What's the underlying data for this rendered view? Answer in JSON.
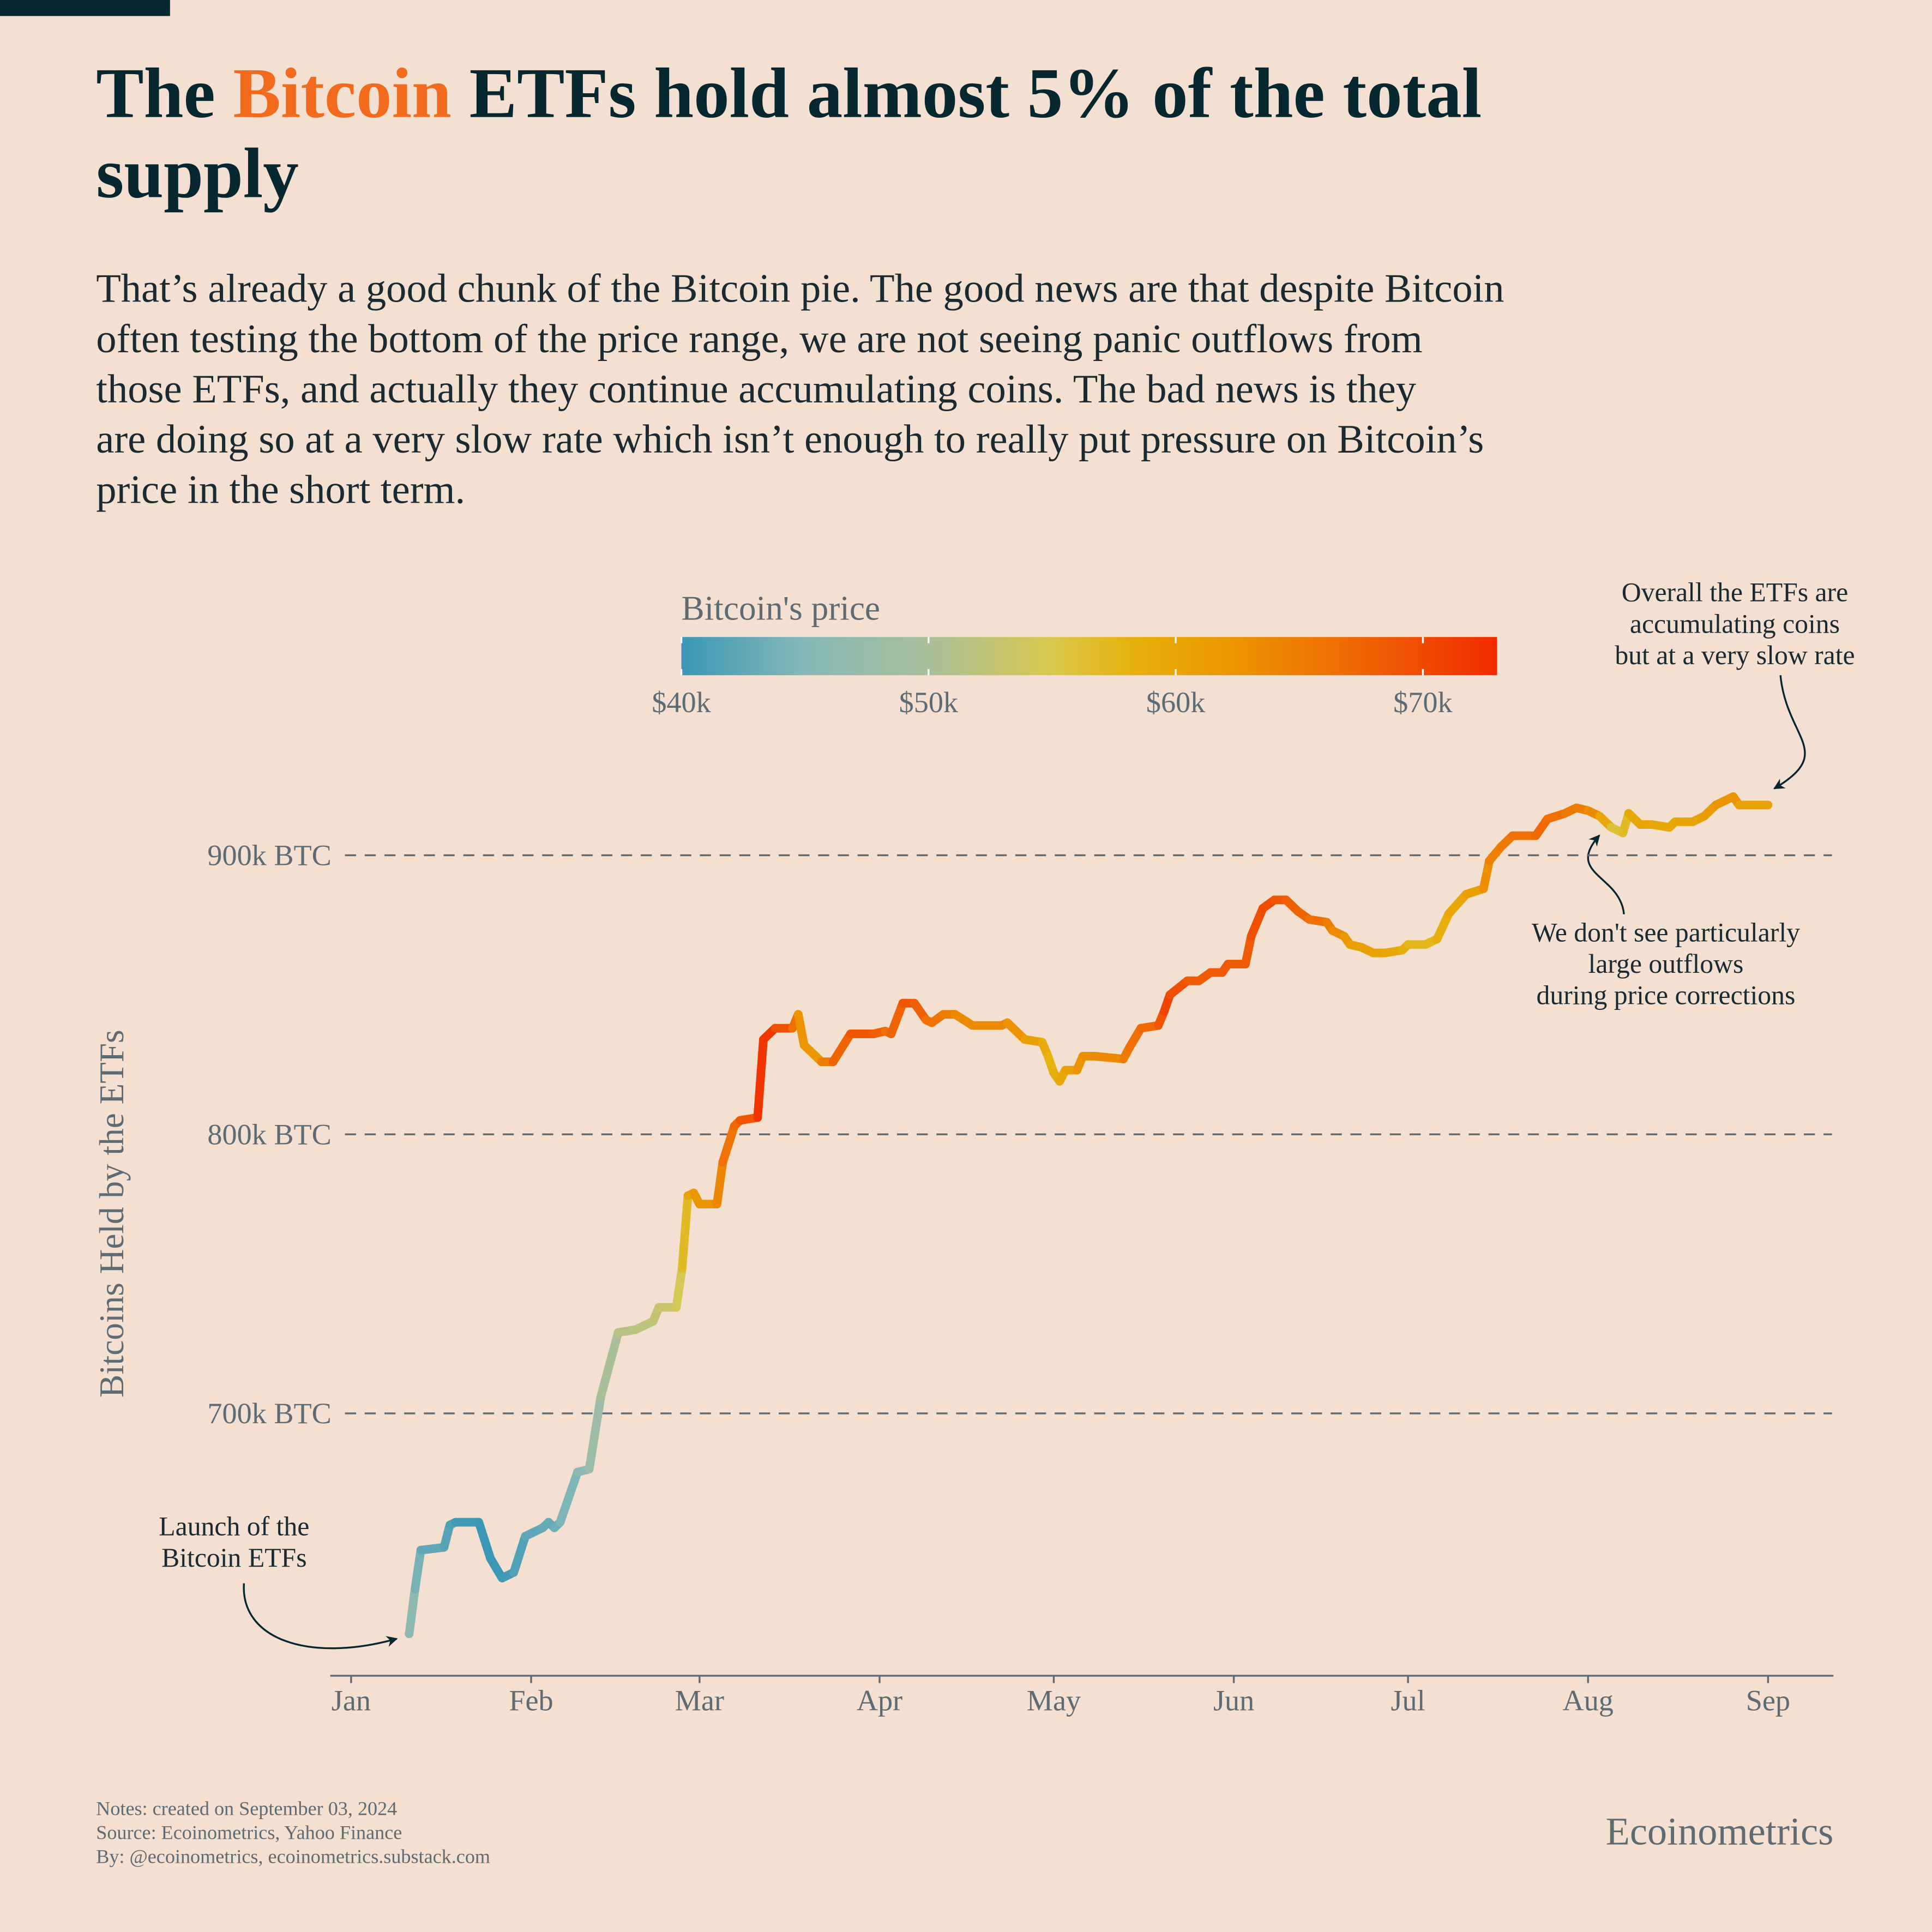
{
  "chart_data": {
    "type": "line",
    "title": {
      "parts": [
        "The ",
        "Bitcoin",
        " ETFs hold almost 5% of the total",
        "supply"
      ],
      "highlight_color": "#f26b1d",
      "color": "#062630"
    },
    "subtitle": [
      "That’s already a good chunk of the Bitcoin pie. The good news are that despite Bitcoin",
      "often testing the bottom of the price range, we are not seeing panic outflows from",
      "those ETFs, and actually they continue accumulating coins. The bad news is they",
      "are doing so at a very slow rate which isn’t enough to really put pressure on Bitcoin’s",
      "price in the short term."
    ],
    "y_label": "Bitcoins Held by the ETFs",
    "colorbar_title": "Bitcoin's price",
    "x": [
      10,
      11,
      12,
      16,
      17,
      18,
      22,
      24,
      26,
      28,
      30,
      33,
      34,
      35,
      36,
      39,
      41,
      43,
      46,
      49,
      52,
      53,
      56,
      57,
      58,
      59,
      60,
      63,
      64,
      66,
      67,
      70,
      71,
      73,
      76,
      77,
      78,
      81,
      83,
      86,
      90,
      92,
      93,
      95,
      97,
      99,
      100,
      102,
      104,
      107,
      112,
      113,
      116,
      119,
      120,
      121,
      122,
      123,
      125,
      126,
      128,
      133,
      134,
      136,
      139,
      140,
      141,
      144,
      146,
      148,
      150,
      151,
      154,
      155,
      157,
      159,
      161,
      163,
      165,
      168,
      169,
      171,
      172,
      174,
      176,
      178,
      181,
      182,
      185,
      187,
      189,
      192,
      195,
      196,
      198,
      200,
      204,
      206,
      209,
      211,
      213,
      215,
      217,
      219,
      220,
      222,
      224,
      227,
      228,
      231,
      233,
      235,
      238,
      239,
      244
    ],
    "values": [
      621000,
      637000,
      651000,
      652000,
      660000,
      661000,
      661000,
      648000,
      641000,
      643000,
      656000,
      659000,
      661000,
      659000,
      661000,
      679000,
      680000,
      706000,
      729000,
      730000,
      733000,
      738000,
      738000,
      752000,
      778000,
      779000,
      775000,
      775000,
      790000,
      803000,
      805000,
      806000,
      834000,
      838000,
      838000,
      843000,
      832000,
      826000,
      826000,
      836000,
      836000,
      837000,
      836000,
      847000,
      847000,
      841000,
      840000,
      843000,
      843000,
      839000,
      839000,
      840000,
      834000,
      833000,
      828000,
      822000,
      819000,
      823000,
      823000,
      828000,
      828000,
      827000,
      831000,
      838000,
      839000,
      844000,
      850000,
      855000,
      855000,
      858000,
      858000,
      861000,
      861000,
      871000,
      881000,
      884000,
      884000,
      880000,
      877000,
      876000,
      873000,
      871000,
      868000,
      867000,
      865000,
      865000,
      866000,
      868000,
      868000,
      870000,
      879000,
      886000,
      888000,
      898000,
      903000,
      907000,
      907000,
      913000,
      915000,
      917000,
      916000,
      914000,
      910000,
      908000,
      915000,
      911000,
      911000,
      910000,
      912000,
      912000,
      914000,
      918000,
      921000,
      918000,
      918000
    ],
    "price": [
      47000,
      45000,
      43000,
      42000,
      42000,
      41000,
      40000,
      40000,
      40000,
      41000,
      42000,
      43000,
      43000,
      43000,
      44000,
      45000,
      47000,
      49000,
      51000,
      52000,
      52000,
      53000,
      53000,
      56000,
      58000,
      62000,
      62000,
      63000,
      65000,
      67000,
      67000,
      71000,
      73000,
      71000,
      68000,
      65000,
      60000,
      64000,
      66000,
      69000,
      69000,
      67000,
      66000,
      69000,
      69000,
      67000,
      66000,
      66000,
      64000,
      63000,
      64000,
      63000,
      62000,
      60000,
      58000,
      58000,
      59000,
      60000,
      62000,
      63000,
      63000,
      64000,
      66000,
      67000,
      67000,
      71000,
      70000,
      69000,
      68000,
      69000,
      68000,
      69000,
      68000,
      69000,
      70000,
      70000,
      68000,
      68000,
      67000,
      66000,
      64000,
      63000,
      61000,
      61000,
      61000,
      60000,
      59000,
      58000,
      57000,
      58000,
      59000,
      60000,
      62000,
      64000,
      65000,
      66000,
      67000,
      67000,
      66000,
      65000,
      65000,
      62000,
      57000,
      55000,
      59000,
      60000,
      60000,
      59000,
      60000,
      60000,
      61000,
      62000,
      63000,
      62000,
      59000
    ],
    "xlim": [
      -4,
      255
    ],
    "xticks": [
      {
        "value": 0,
        "label": "Jan"
      },
      {
        "value": 31,
        "label": "Feb"
      },
      {
        "value": 60,
        "label": "Mar"
      },
      {
        "value": 91,
        "label": "Apr"
      },
      {
        "value": 121,
        "label": "May"
      },
      {
        "value": 152,
        "label": "Jun"
      },
      {
        "value": 182,
        "label": "Jul"
      },
      {
        "value": 213,
        "label": "Aug"
      },
      {
        "value": 244,
        "label": "Sep"
      }
    ],
    "ylim": [
      606000,
      942000
    ],
    "yticks": [
      {
        "value": 700000,
        "label": "700k BTC"
      },
      {
        "value": 800000,
        "label": "800k BTC"
      },
      {
        "value": 900000,
        "label": "900k BTC"
      }
    ],
    "grid": true,
    "clim": [
      40000,
      73000
    ],
    "cticks": [
      {
        "value": 40000,
        "label": "$40k"
      },
      {
        "value": 50000,
        "label": "$50k"
      },
      {
        "value": 60000,
        "label": "$60k"
      },
      {
        "value": 70000,
        "label": "$70k"
      }
    ],
    "colorscale": [
      {
        "value": 40000,
        "color": "#3a97b5"
      },
      {
        "value": 45000,
        "color": "#86b8b8"
      },
      {
        "value": 50000,
        "color": "#a9bf9a"
      },
      {
        "value": 55000,
        "color": "#d9c94e"
      },
      {
        "value": 58000,
        "color": "#e6b210"
      },
      {
        "value": 62000,
        "color": "#eb9800"
      },
      {
        "value": 67000,
        "color": "#ef6a05"
      },
      {
        "value": 73000,
        "color": "#f02a00"
      }
    ],
    "annotations": [
      {
        "lines": [
          "Launch of the",
          "Bitcoin ETFs"
        ]
      },
      {
        "lines": [
          "Overall the ETFs are",
          "accumulating coins",
          "but at a very slow rate"
        ]
      },
      {
        "lines": [
          "We don't see particularly",
          "large outflows",
          "during price corrections"
        ]
      }
    ],
    "notes": [
      "Notes: created on September 03, 2024",
      "Source: Ecoinometrics, Yahoo Finance",
      "By: @ecoinometrics, ecoinometrics.substack.com"
    ],
    "brand": "Ecoinometrics"
  }
}
